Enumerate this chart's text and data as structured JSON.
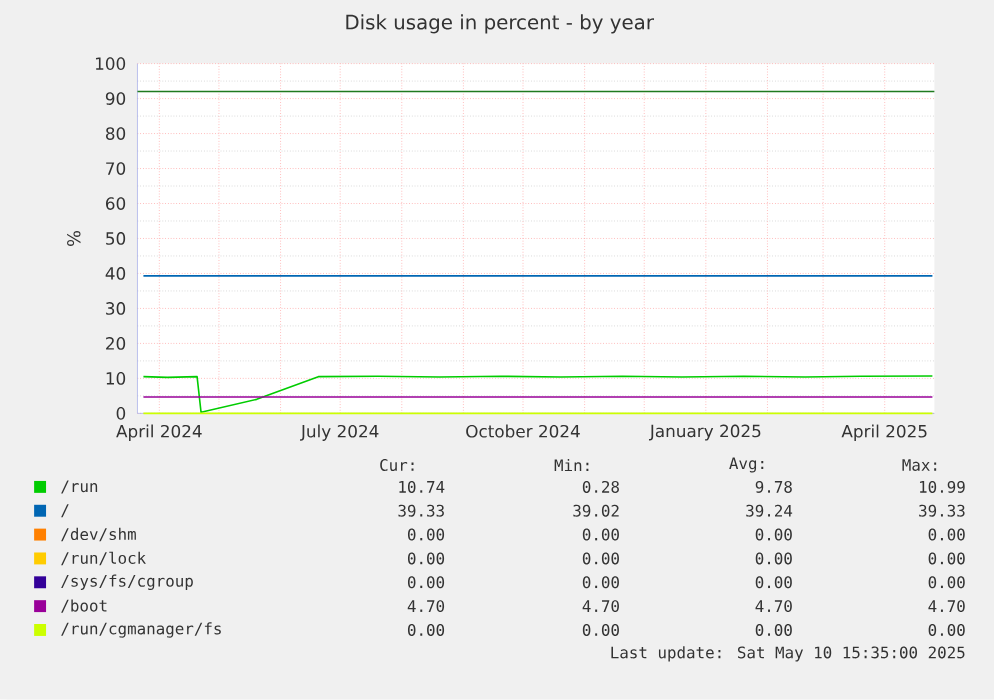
{
  "chart_data": {
    "type": "line",
    "title": "Disk usage in percent - by year",
    "ylabel": "%",
    "xlim": [
      "2024-03-21",
      "2025-04-26"
    ],
    "ylim": [
      0,
      100
    ],
    "xticks": [
      {
        "value": "2024-04-01",
        "label": "April 2024"
      },
      {
        "value": "2024-05-01",
        "label": null
      },
      {
        "value": "2024-06-01",
        "label": null
      },
      {
        "value": "2024-07-01",
        "label": "July 2024"
      },
      {
        "value": "2024-08-01",
        "label": null
      },
      {
        "value": "2024-09-01",
        "label": null
      },
      {
        "value": "2024-10-01",
        "label": "October 2024"
      },
      {
        "value": "2024-11-01",
        "label": null
      },
      {
        "value": "2024-12-01",
        "label": null
      },
      {
        "value": "2025-01-01",
        "label": "January 2025"
      },
      {
        "value": "2025-02-01",
        "label": null
      },
      {
        "value": "2025-03-01",
        "label": null
      },
      {
        "value": "2025-04-01",
        "label": "April 2025"
      }
    ],
    "yticks": [
      0,
      10,
      20,
      30,
      40,
      50,
      60,
      70,
      80,
      90,
      100
    ],
    "grid": true,
    "legend": "bottom",
    "marker": "none",
    "line_style": "solid",
    "ref_lines": [
      {
        "axis": "y",
        "value": 92,
        "color": "#1f7a1f"
      }
    ],
    "series": [
      {
        "name": "/run",
        "color": "#00cc00",
        "x": [
          "2024-03-24",
          "2024-04-05",
          "2024-04-20",
          "2024-04-22",
          "2024-05-20",
          "2024-06-20",
          "2024-07-20",
          "2024-08-20",
          "2024-09-20",
          "2024-10-20",
          "2024-11-20",
          "2024-12-20",
          "2025-01-20",
          "2025-02-20",
          "2025-03-20",
          "2025-04-25"
        ],
        "values": [
          10.5,
          10.3,
          10.5,
          0.3,
          4,
          10.5,
          10.6,
          10.4,
          10.6,
          10.4,
          10.6,
          10.4,
          10.6,
          10.4,
          10.6,
          10.7
        ]
      },
      {
        "name": "/",
        "color": "#0066b3",
        "x": [
          "2024-03-24",
          "2025-04-25"
        ],
        "values": [
          39.3,
          39.3
        ]
      },
      {
        "name": "/dev/shm",
        "color": "#ff8000"
      },
      {
        "name": "/run/lock",
        "color": "#ffcc00"
      },
      {
        "name": "/sys/fs/cgroup",
        "color": "#330099"
      },
      {
        "name": "/boot",
        "color": "#990099",
        "x": [
          "2024-03-24",
          "2025-04-25"
        ],
        "values": [
          4.7,
          4.7
        ]
      },
      {
        "name": "/run/cgmanager/fs",
        "color": "#ccff00",
        "x": [
          "2024-03-24",
          "2025-04-25"
        ],
        "values": [
          0,
          0
        ]
      }
    ],
    "annotations": [
      "Cur:",
      "Min:",
      "Avg:",
      "Max:",
      "10.74",
      "0.28",
      "9.78",
      "10.99",
      "39.33",
      "39.02",
      "39.24",
      "39.33",
      "0.00",
      "0.00",
      "0.00",
      "0.00",
      "0.00",
      "0.00",
      "0.00",
      "0.00",
      "0.00",
      "0.00",
      "0.00",
      "0.00",
      "4.70",
      "4.70",
      "4.70",
      "4.70",
      "0.00",
      "0.00",
      "0.00",
      "0.00",
      "Last update: Sat May 10 15:35:00 2025"
    ]
  }
}
